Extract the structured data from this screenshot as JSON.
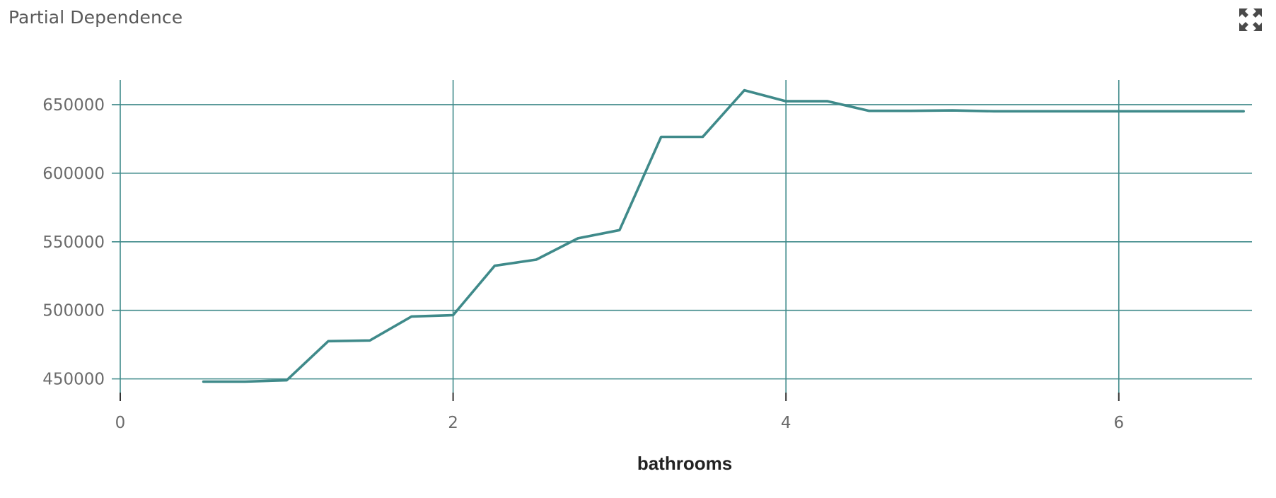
{
  "panel": {
    "title": "Partial Dependence",
    "maximize_icon": "expand-arrows-icon"
  },
  "colors": {
    "line": "#3f8a8a",
    "grid": "#3f8a8a",
    "tick_text": "#6b6b6b",
    "axis_title": "#222222"
  },
  "chart_data": {
    "type": "line",
    "title": "",
    "xlabel": "bathrooms",
    "ylabel": "",
    "xlim": [
      0,
      6.8
    ],
    "ylim": [
      440000,
      667000
    ],
    "x_ticks": [
      0,
      2,
      4,
      6
    ],
    "y_ticks": [
      450000,
      500000,
      550000,
      600000,
      650000
    ],
    "grid": true,
    "legend": "none",
    "series": [
      {
        "x": [
          0.5,
          0.75,
          1.0,
          1.25,
          1.5,
          1.75,
          2.0,
          2.25,
          2.5,
          2.75,
          3.0,
          3.25,
          3.5,
          3.75,
          4.0,
          4.25,
          4.5,
          4.75,
          5.0,
          5.25,
          5.5,
          5.75,
          6.0,
          6.25,
          6.5,
          6.75
        ],
        "y": [
          448000,
          448000,
          449000,
          477500,
          478000,
          495500,
          496500,
          532500,
          537000,
          552500,
          558500,
          626500,
          626500,
          660500,
          652500,
          652500,
          645500,
          645500,
          645800,
          645200,
          645200,
          645200,
          645200,
          645200,
          645200,
          645200
        ]
      }
    ]
  }
}
